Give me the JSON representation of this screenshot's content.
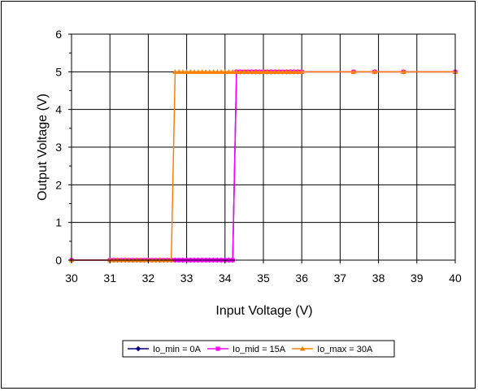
{
  "chart_data": {
    "type": "line",
    "xlabel": "Input Voltage (V)",
    "ylabel": "Output Voltage (V)",
    "xlim": [
      30,
      40
    ],
    "ylim": [
      0,
      6
    ],
    "xticks": [
      30,
      31,
      32,
      33,
      34,
      35,
      36,
      37,
      38,
      39,
      40
    ],
    "yticks": [
      0,
      1,
      2,
      3,
      4,
      5,
      6
    ],
    "grid": true,
    "legend_position": "bottom",
    "series": [
      {
        "name": "Io_min = 0A",
        "color": "#000080",
        "marker": "diamond",
        "x": [
          30,
          31,
          31.1,
          31.2,
          31.3,
          31.4,
          31.5,
          31.6,
          31.7,
          31.8,
          31.9,
          32,
          32.1,
          32.2,
          32.3,
          32.4,
          32.5,
          32.6,
          32.7,
          32.8,
          32.9,
          33,
          33.1,
          33.2,
          33.3,
          33.4,
          33.5,
          33.6,
          33.7,
          33.8,
          33.9,
          34,
          34.1,
          34.2,
          34.3,
          34.4,
          34.5,
          34.6,
          34.7,
          34.8,
          34.9,
          35,
          35.1,
          35.2,
          35.3,
          35.4,
          35.5,
          35.6,
          35.7,
          35.8,
          35.9,
          36,
          37.35,
          37.9,
          38.65,
          40
        ],
        "y": [
          0,
          0,
          0,
          0,
          0,
          0,
          0,
          0,
          0,
          0,
          0,
          0,
          0,
          0,
          0,
          0,
          0,
          0,
          0,
          0,
          0,
          0,
          0,
          0,
          0,
          0,
          0,
          0,
          0,
          0,
          0,
          0,
          0,
          0,
          5,
          5,
          5,
          5,
          5,
          5,
          5,
          5,
          5,
          5,
          5,
          5,
          5,
          5,
          5,
          5,
          5,
          5,
          5,
          5,
          5,
          5
        ]
      },
      {
        "name": "Io_mid = 15A",
        "color": "#FF00FF",
        "marker": "square",
        "x": [
          30,
          31,
          31.1,
          31.2,
          31.3,
          31.4,
          31.5,
          31.6,
          31.7,
          31.8,
          31.9,
          32,
          32.1,
          32.2,
          32.3,
          32.4,
          32.5,
          32.6,
          32.7,
          32.8,
          32.9,
          33,
          33.1,
          33.2,
          33.3,
          33.4,
          33.5,
          33.6,
          33.7,
          33.8,
          33.9,
          34,
          34.1,
          34.2,
          34.3,
          34.4,
          34.5,
          34.6,
          34.7,
          34.8,
          34.9,
          35,
          35.1,
          35.2,
          35.3,
          35.4,
          35.5,
          35.6,
          35.7,
          35.8,
          35.9,
          36,
          37.35,
          37.9,
          38.65,
          40
        ],
        "y": [
          0,
          0,
          0,
          0,
          0,
          0,
          0,
          0,
          0,
          0,
          0,
          0,
          0,
          0,
          0,
          0,
          0,
          0,
          0,
          0,
          0,
          0,
          0,
          0,
          0,
          0,
          0,
          0,
          0,
          0,
          0,
          0,
          0,
          0,
          5,
          5,
          5,
          5,
          5,
          5,
          5,
          5,
          5,
          5,
          5,
          5,
          5,
          5,
          5,
          5,
          5,
          5,
          5,
          5,
          5,
          5
        ]
      },
      {
        "name": "Io_max = 30A",
        "color": "#FF8000",
        "marker": "triangle",
        "x": [
          30,
          31,
          31.1,
          31.2,
          31.3,
          31.4,
          31.5,
          31.6,
          31.7,
          31.8,
          31.9,
          32,
          32.1,
          32.2,
          32.3,
          32.4,
          32.5,
          32.6,
          32.7,
          32.8,
          32.9,
          33,
          33.1,
          33.2,
          33.3,
          33.4,
          33.5,
          33.6,
          33.7,
          33.8,
          33.9,
          34,
          34.1,
          34.2,
          34.3,
          34.4,
          34.5,
          34.6,
          34.7,
          34.8,
          34.9,
          35,
          35.1,
          35.2,
          35.3,
          35.4,
          35.5,
          35.6,
          35.7,
          35.8,
          35.9,
          36,
          37.35,
          37.9,
          38.65,
          40
        ],
        "y": [
          0,
          0,
          0,
          0,
          0,
          0,
          0,
          0,
          0,
          0,
          0,
          0,
          0,
          0,
          0,
          0,
          0,
          0,
          5,
          5,
          5,
          5,
          5,
          5,
          5,
          5,
          5,
          5,
          5,
          5,
          5,
          5,
          5,
          5,
          5,
          5,
          5,
          5,
          5,
          5,
          5,
          5,
          5,
          5,
          5,
          5,
          5,
          5,
          5,
          5,
          5,
          5,
          5,
          5,
          5,
          5
        ]
      }
    ]
  }
}
